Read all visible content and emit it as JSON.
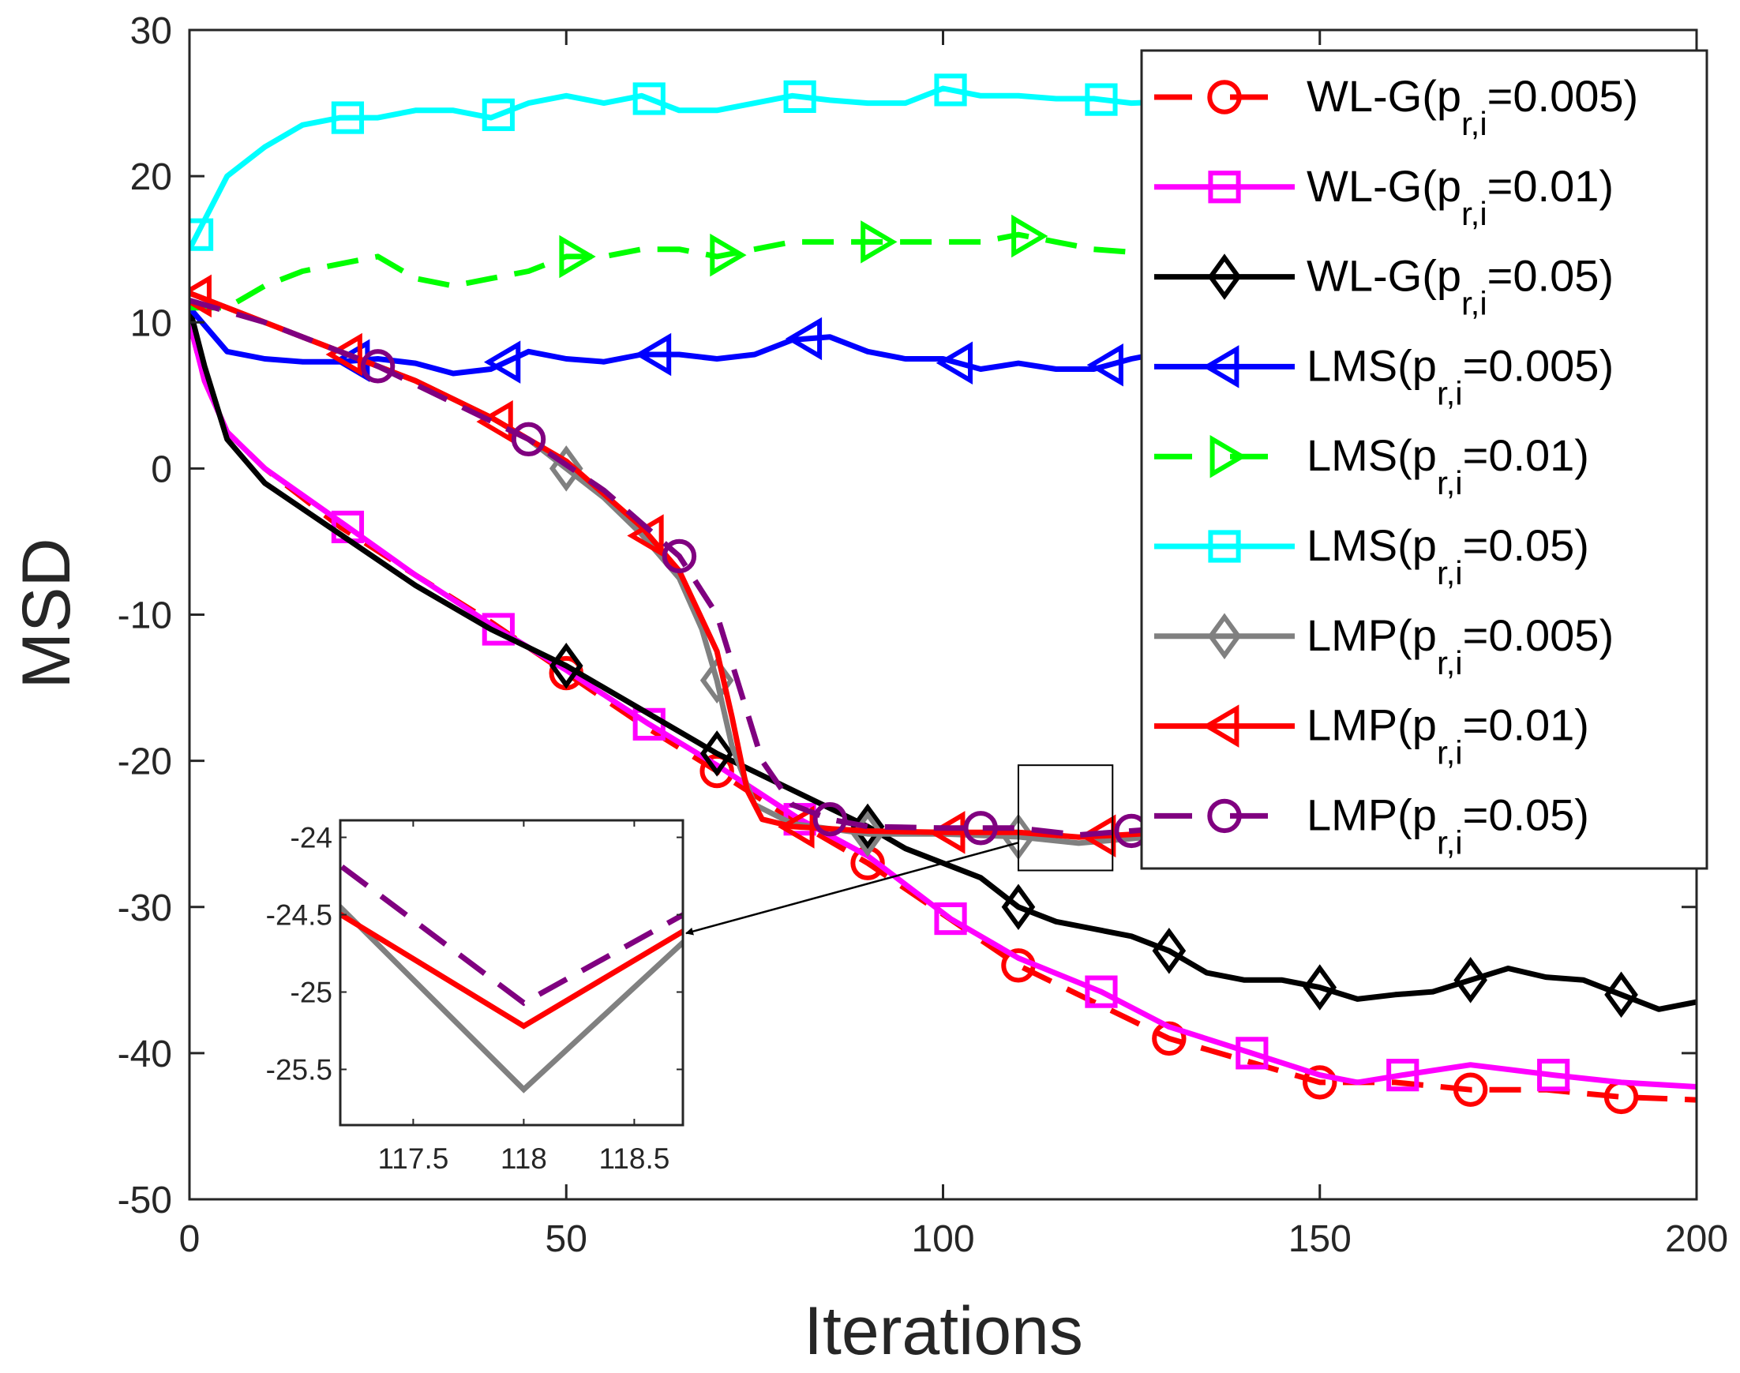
{
  "chart_data": {
    "type": "line",
    "xlabel": "Iterations",
    "ylabel": "MSD",
    "xlim": [
      0,
      200
    ],
    "ylim": [
      -50,
      30
    ],
    "xticks": [
      "0",
      "50",
      "100",
      "150",
      "200"
    ],
    "yticks": [
      "-50",
      "-40",
      "-30",
      "-20",
      "-10",
      "0",
      "10",
      "20",
      "30"
    ],
    "grid": false,
    "legend_position": "top-right",
    "series": [
      {
        "key": "wlg005",
        "label": {
          "main": "WL-G(p",
          "sub": "r,i",
          "tail": "=0.005)"
        },
        "color": "#ff0000",
        "dash": true,
        "marker": "circle",
        "points": [
          [
            0,
            10
          ],
          [
            2,
            6
          ],
          [
            5,
            2.5
          ],
          [
            10,
            0
          ],
          [
            20,
            -4
          ],
          [
            30,
            -7.3
          ],
          [
            40,
            -10.5
          ],
          [
            50,
            -14
          ],
          [
            60,
            -17.5
          ],
          [
            70,
            -20.7
          ],
          [
            80,
            -24
          ],
          [
            90,
            -27
          ],
          [
            100,
            -30.5
          ],
          [
            110,
            -34
          ],
          [
            120,
            -36.5
          ],
          [
            130,
            -39
          ],
          [
            140,
            -40.5
          ],
          [
            150,
            -42
          ],
          [
            160,
            -42
          ],
          [
            170,
            -42.5
          ],
          [
            180,
            -42.5
          ],
          [
            190,
            -43
          ],
          [
            200,
            -43.2
          ]
        ],
        "marker_x": [
          50,
          70,
          90,
          110,
          130,
          150,
          170,
          190
        ]
      },
      {
        "key": "wlg01",
        "label": {
          "main": "WL-G(p",
          "sub": "r,i",
          "tail": "=0.01)"
        },
        "color": "#ff00ff",
        "dash": false,
        "marker": "square",
        "points": [
          [
            0,
            10
          ],
          [
            2,
            6
          ],
          [
            5,
            2.5
          ],
          [
            10,
            0
          ],
          [
            21,
            -4
          ],
          [
            30,
            -7.3
          ],
          [
            41,
            -11
          ],
          [
            50,
            -13.8
          ],
          [
            61,
            -17.5
          ],
          [
            70,
            -20.3
          ],
          [
            81,
            -24
          ],
          [
            90,
            -26.5
          ],
          [
            101,
            -30.8
          ],
          [
            110,
            -33.5
          ],
          [
            121,
            -35.8
          ],
          [
            130,
            -38.2
          ],
          [
            141,
            -40
          ],
          [
            150,
            -41.5
          ],
          [
            155,
            -42
          ],
          [
            161,
            -41.5
          ],
          [
            170,
            -40.8
          ],
          [
            181,
            -41.5
          ],
          [
            190,
            -42
          ],
          [
            200,
            -42.3
          ]
        ],
        "marker_x": [
          21,
          41,
          61,
          81,
          101,
          121,
          141,
          161,
          181
        ]
      },
      {
        "key": "wlg05",
        "label": {
          "main": "WL-G(p",
          "sub": "r,i",
          "tail": "=0.05)"
        },
        "color": "#000000",
        "dash": false,
        "marker": "diamond",
        "points": [
          [
            0,
            11
          ],
          [
            2,
            7
          ],
          [
            5,
            2
          ],
          [
            10,
            -1
          ],
          [
            20,
            -4.5
          ],
          [
            30,
            -8
          ],
          [
            40,
            -11
          ],
          [
            50,
            -13.5
          ],
          [
            60,
            -16.5
          ],
          [
            70,
            -19.5
          ],
          [
            80,
            -22
          ],
          [
            90,
            -24.5
          ],
          [
            95,
            -26
          ],
          [
            100,
            -27
          ],
          [
            105,
            -28
          ],
          [
            110,
            -30
          ],
          [
            115,
            -31
          ],
          [
            120,
            -31.5
          ],
          [
            125,
            -32
          ],
          [
            130,
            -33
          ],
          [
            135,
            -34.5
          ],
          [
            140,
            -35
          ],
          [
            145,
            -35
          ],
          [
            150,
            -35.5
          ],
          [
            155,
            -36.3
          ],
          [
            160,
            -36
          ],
          [
            165,
            -35.8
          ],
          [
            170,
            -35
          ],
          [
            175,
            -34.2
          ],
          [
            180,
            -34.8
          ],
          [
            185,
            -35
          ],
          [
            190,
            -36
          ],
          [
            195,
            -37
          ],
          [
            200,
            -36.5
          ]
        ],
        "marker_x": [
          50,
          70,
          90,
          110,
          130,
          150,
          170,
          190
        ]
      },
      {
        "key": "lms005",
        "label": {
          "main": "LMS(p",
          "sub": "r,i",
          "tail": "=0.005)"
        },
        "color": "#0000ff",
        "dash": false,
        "marker": "triangle-left",
        "points": [
          [
            0,
            11
          ],
          [
            5,
            8
          ],
          [
            10,
            7.5
          ],
          [
            15,
            7.3
          ],
          [
            20,
            7.3
          ],
          [
            25,
            7.5
          ],
          [
            30,
            7.2
          ],
          [
            35,
            6.5
          ],
          [
            40,
            6.8
          ],
          [
            45,
            8
          ],
          [
            50,
            7.5
          ],
          [
            55,
            7.3
          ],
          [
            60,
            7.8
          ],
          [
            65,
            7.8
          ],
          [
            70,
            7.5
          ],
          [
            75,
            7.8
          ],
          [
            80,
            8.8
          ],
          [
            85,
            9
          ],
          [
            90,
            8
          ],
          [
            95,
            7.5
          ],
          [
            100,
            7.5
          ],
          [
            105,
            6.8
          ],
          [
            110,
            7.2
          ],
          [
            115,
            6.8
          ],
          [
            120,
            6.8
          ],
          [
            125,
            7.5
          ],
          [
            130,
            8
          ],
          [
            140,
            7.8
          ],
          [
            150,
            7.5
          ],
          [
            160,
            8
          ],
          [
            170,
            7.6
          ],
          [
            180,
            7.8
          ],
          [
            190,
            7.5
          ],
          [
            200,
            7.8
          ]
        ],
        "marker_x": [
          22,
          42,
          62,
          82,
          102,
          122,
          142,
          162,
          182
        ]
      },
      {
        "key": "lms01",
        "label": {
          "main": "LMS(p",
          "sub": "r,i",
          "tail": "=0.01)"
        },
        "color": "#00ff00",
        "dash": true,
        "marker": "triangle-right",
        "points": [
          [
            0,
            11
          ],
          [
            5,
            11
          ],
          [
            10,
            12.5
          ],
          [
            15,
            13.5
          ],
          [
            20,
            14
          ],
          [
            25,
            14.5
          ],
          [
            30,
            13
          ],
          [
            35,
            12.5
          ],
          [
            40,
            13
          ],
          [
            45,
            13.5
          ],
          [
            50,
            14.5
          ],
          [
            55,
            14.5
          ],
          [
            60,
            15
          ],
          [
            65,
            15
          ],
          [
            70,
            14.5
          ],
          [
            75,
            15
          ],
          [
            80,
            15.5
          ],
          [
            85,
            15.5
          ],
          [
            90,
            15.5
          ],
          [
            95,
            15.5
          ],
          [
            100,
            15.5
          ],
          [
            105,
            15.5
          ],
          [
            110,
            16
          ],
          [
            115,
            15.5
          ],
          [
            120,
            15
          ],
          [
            125,
            14.8
          ],
          [
            140,
            15
          ],
          [
            160,
            15.2
          ],
          [
            180,
            15
          ],
          [
            200,
            15.2
          ]
        ],
        "marker_x": [
          51,
          71,
          91,
          111,
          131,
          151,
          171,
          191
        ]
      },
      {
        "key": "lms05",
        "label": {
          "main": "LMS(p",
          "sub": "r,i",
          "tail": "=0.05)"
        },
        "color": "#00ffff",
        "dash": false,
        "marker": "square",
        "points": [
          [
            0,
            15
          ],
          [
            2,
            17
          ],
          [
            5,
            20
          ],
          [
            10,
            22
          ],
          [
            15,
            23.5
          ],
          [
            20,
            24
          ],
          [
            25,
            24
          ],
          [
            30,
            24.5
          ],
          [
            35,
            24.5
          ],
          [
            40,
            24
          ],
          [
            45,
            25
          ],
          [
            50,
            25.5
          ],
          [
            55,
            25
          ],
          [
            60,
            25.5
          ],
          [
            65,
            24.5
          ],
          [
            70,
            24.5
          ],
          [
            75,
            25
          ],
          [
            80,
            25.5
          ],
          [
            85,
            25.2
          ],
          [
            90,
            25
          ],
          [
            95,
            25
          ],
          [
            100,
            26
          ],
          [
            105,
            25.5
          ],
          [
            110,
            25.5
          ],
          [
            115,
            25.3
          ],
          [
            120,
            25.3
          ],
          [
            125,
            25
          ],
          [
            140,
            25.3
          ],
          [
            160,
            25.5
          ],
          [
            180,
            25.2
          ],
          [
            200,
            25.4
          ]
        ],
        "marker_x": [
          1,
          21,
          41,
          61,
          81,
          101,
          121,
          141,
          161,
          181
        ]
      },
      {
        "key": "lmp005",
        "label": {
          "main": "LMP(p",
          "sub": "r,i",
          "tail": "=0.005)"
        },
        "color": "#808080",
        "dash": false,
        "marker": "diamond",
        "points": [
          [
            0,
            12
          ],
          [
            10,
            10
          ],
          [
            20,
            8
          ],
          [
            30,
            6
          ],
          [
            40,
            3.5
          ],
          [
            45,
            2
          ],
          [
            50,
            0
          ],
          [
            55,
            -2
          ],
          [
            60,
            -4.5
          ],
          [
            65,
            -7.5
          ],
          [
            68,
            -11
          ],
          [
            70,
            -14.5
          ],
          [
            72,
            -19
          ],
          [
            75,
            -23
          ],
          [
            80,
            -24.3
          ],
          [
            90,
            -25
          ],
          [
            100,
            -25
          ],
          [
            110,
            -25.2
          ],
          [
            118,
            -25.63
          ],
          [
            130,
            -25.1
          ],
          [
            150,
            -25
          ],
          [
            170,
            -25.1
          ],
          [
            200,
            -25
          ]
        ],
        "marker_x": [
          50,
          70,
          90,
          110,
          130,
          150,
          170,
          190
        ]
      },
      {
        "key": "lmp01",
        "label": {
          "main": "LMP(p",
          "sub": "r,i",
          "tail": "=0.01)"
        },
        "color": "#ff0000",
        "dash": false,
        "marker": "triangle-left",
        "points": [
          [
            0,
            12
          ],
          [
            10,
            10
          ],
          [
            20,
            8
          ],
          [
            30,
            6
          ],
          [
            40,
            3.5
          ],
          [
            50,
            0.5
          ],
          [
            60,
            -4
          ],
          [
            65,
            -7
          ],
          [
            70,
            -12.5
          ],
          [
            72,
            -17
          ],
          [
            74,
            -22
          ],
          [
            76,
            -24
          ],
          [
            80,
            -24.5
          ],
          [
            90,
            -24.8
          ],
          [
            100,
            -24.9
          ],
          [
            110,
            -24.9
          ],
          [
            118,
            -25.22
          ],
          [
            130,
            -24.9
          ],
          [
            150,
            -24.9
          ],
          [
            170,
            -24.9
          ],
          [
            200,
            -24.9
          ]
        ],
        "marker_x": [
          1,
          21,
          41,
          61,
          81,
          101,
          121,
          141,
          161,
          181
        ]
      },
      {
        "key": "lmp05",
        "label": {
          "main": "LMP(p",
          "sub": "r,i",
          "tail": "=0.05)"
        },
        "color": "#800080",
        "dash": true,
        "marker": "circle",
        "points": [
          [
            0,
            11.5
          ],
          [
            10,
            10
          ],
          [
            25,
            7
          ],
          [
            35,
            4.5
          ],
          [
            45,
            2
          ],
          [
            55,
            -1.5
          ],
          [
            65,
            -6
          ],
          [
            70,
            -10
          ],
          [
            73,
            -15
          ],
          [
            76,
            -20
          ],
          [
            80,
            -23
          ],
          [
            85,
            -24
          ],
          [
            90,
            -24.5
          ],
          [
            100,
            -24.6
          ],
          [
            110,
            -24.6
          ],
          [
            118,
            -25.07
          ],
          [
            130,
            -24.6
          ],
          [
            150,
            -24.6
          ],
          [
            170,
            -24.6
          ],
          [
            200,
            -24.6
          ]
        ],
        "marker_x": [
          25,
          45,
          65,
          85,
          105,
          125,
          145,
          165,
          185
        ]
      }
    ],
    "zoom_box": {
      "xlim": [
        110,
        122.5
      ],
      "ylim": [
        -27.5,
        -20.3
      ]
    },
    "inset": {
      "xlim": [
        117.17,
        118.72
      ],
      "ylim": [
        -25.86,
        -23.89
      ],
      "xticks": [
        "117.5",
        "118",
        "118.5"
      ],
      "yticks": [
        "-24",
        "-24.5",
        "-25",
        "-25.5"
      ],
      "series": [
        {
          "key": "lmp005",
          "color": "#808080",
          "dash": false,
          "points": [
            [
              117,
              -24.21
            ],
            [
              118,
              -25.63
            ],
            [
              119,
              -24.31
            ]
          ]
        },
        {
          "key": "lmp01",
          "color": "#ff0000",
          "dash": false,
          "points": [
            [
              117,
              -24.35
            ],
            [
              118,
              -25.22
            ],
            [
              119,
              -24.37
            ]
          ]
        },
        {
          "key": "lmp05",
          "color": "#800080",
          "dash": true,
          "points": [
            [
              117,
              -24.0
            ],
            [
              118,
              -25.07
            ],
            [
              119,
              -24.28
            ]
          ]
        }
      ]
    }
  }
}
